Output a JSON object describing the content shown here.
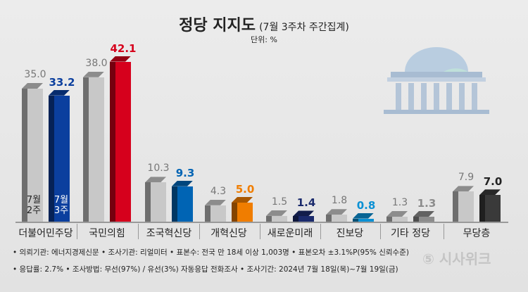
{
  "chart_data": {
    "type": "bar",
    "title": "정당 지지도",
    "subtitle": "(7월 3주차 주간집계)",
    "unit": "단위: %",
    "categories": [
      "더불어민주당",
      "국민의힘",
      "조국혁신당",
      "개혁신당",
      "새로운미래",
      "진보당",
      "기타 정당",
      "무당층"
    ],
    "series": [
      {
        "name": "7월 2주",
        "values": [
          35.0,
          38.0,
          10.3,
          4.3,
          1.5,
          1.8,
          1.3,
          7.9
        ],
        "color": "#c8c8c8"
      },
      {
        "name": "7월 3주",
        "values": [
          33.2,
          42.1,
          9.3,
          5.0,
          1.4,
          0.8,
          1.3,
          7.0
        ],
        "colors": [
          "#0b3f9e",
          "#d6001c",
          "#0064b4",
          "#f07d00",
          "#1a2a6c",
          "#0a90d4",
          "#8c8c8c",
          "#3a3a3a"
        ]
      }
    ],
    "legend_inline": {
      "prev": [
        "7월",
        "2주"
      ],
      "curr": [
        "7월",
        "3주"
      ]
    }
  },
  "notes": {
    "line1": "• 의뢰기관: 에너지경제신문 • 조사기관: 리얼미터 • 표본수: 전국 만 18세 이상 1,003명 • 표본오차 ±3.1%P(95% 신뢰수준)",
    "line2": "• 응답률: 2.7% • 조사방법: 무선(97%) / 유선(3%) 자동응답 전화조사 • 조사기간: 2024년 7월 18일(목)~7월 19일(금)"
  },
  "logo": "시사위크"
}
